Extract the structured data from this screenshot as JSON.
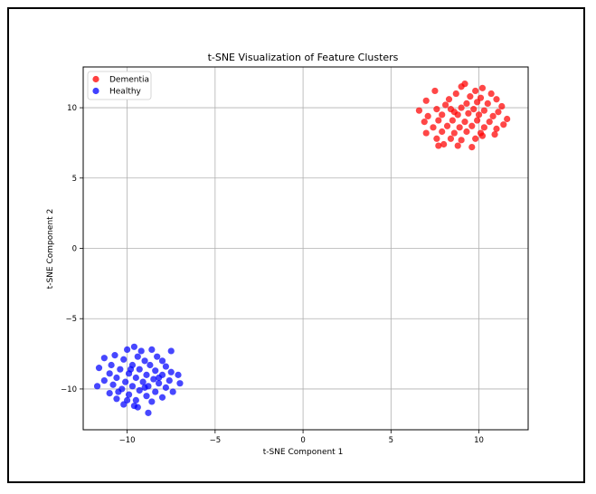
{
  "chart_data": {
    "type": "scatter",
    "title": "t-SNE Visualization of Feature Clusters",
    "xlabel": "t-SNE Component 1",
    "ylabel": "t-SNE Component 2",
    "xlim": [
      -12.5,
      12.8
    ],
    "ylim": [
      -12.9,
      12.9
    ],
    "xticks": [
      -10,
      -5,
      0,
      5,
      10
    ],
    "yticks": [
      -10,
      -5,
      0,
      5,
      10
    ],
    "xtick_labels": [
      "−10",
      "−5",
      "0",
      "5",
      "10"
    ],
    "ytick_labels": [
      "−10",
      "−5",
      "0",
      "5",
      "10"
    ],
    "grid": true,
    "legend_position": "top-left",
    "series": [
      {
        "name": "Dementia",
        "color": "#ff0000",
        "points": [
          [
            9.2,
            11.7
          ],
          [
            9.0,
            11.5
          ],
          [
            10.2,
            11.4
          ],
          [
            8.7,
            11.0
          ],
          [
            9.8,
            11.2
          ],
          [
            10.7,
            11.0
          ],
          [
            7.5,
            11.2
          ],
          [
            8.3,
            10.6
          ],
          [
            9.5,
            10.8
          ],
          [
            10.1,
            10.7
          ],
          [
            11.0,
            10.6
          ],
          [
            7.0,
            10.5
          ],
          [
            8.1,
            10.2
          ],
          [
            9.3,
            10.3
          ],
          [
            10.5,
            10.3
          ],
          [
            11.3,
            10.1
          ],
          [
            6.6,
            9.8
          ],
          [
            7.6,
            9.9
          ],
          [
            8.4,
            9.9
          ],
          [
            9.0,
            10.0
          ],
          [
            9.7,
            9.9
          ],
          [
            10.3,
            9.8
          ],
          [
            11.1,
            9.7
          ],
          [
            7.1,
            9.4
          ],
          [
            7.9,
            9.5
          ],
          [
            8.8,
            9.5
          ],
          [
            9.4,
            9.6
          ],
          [
            10.0,
            9.5
          ],
          [
            10.8,
            9.4
          ],
          [
            11.6,
            9.2
          ],
          [
            6.9,
            9.0
          ],
          [
            7.7,
            9.1
          ],
          [
            8.5,
            9.1
          ],
          [
            9.2,
            9.0
          ],
          [
            9.9,
            9.1
          ],
          [
            10.6,
            9.0
          ],
          [
            11.4,
            8.8
          ],
          [
            7.4,
            8.6
          ],
          [
            8.2,
            8.7
          ],
          [
            8.9,
            8.6
          ],
          [
            9.6,
            8.7
          ],
          [
            10.3,
            8.6
          ],
          [
            11.0,
            8.5
          ],
          [
            7.0,
            8.2
          ],
          [
            7.9,
            8.3
          ],
          [
            8.6,
            8.2
          ],
          [
            9.3,
            8.3
          ],
          [
            10.1,
            8.2
          ],
          [
            10.9,
            8.1
          ],
          [
            7.6,
            7.8
          ],
          [
            8.4,
            7.8
          ],
          [
            9.0,
            7.7
          ],
          [
            9.8,
            7.8
          ],
          [
            8.0,
            7.4
          ],
          [
            8.8,
            7.3
          ],
          [
            9.6,
            7.2
          ],
          [
            7.7,
            7.3
          ],
          [
            10.2,
            8.0
          ],
          [
            8.6,
            9.7
          ],
          [
            9.9,
            10.4
          ]
        ]
      },
      {
        "name": "Healthy",
        "color": "#0000ff",
        "points": [
          [
            -9.6,
            -7.0
          ],
          [
            -9.2,
            -7.3
          ],
          [
            -10.0,
            -7.2
          ],
          [
            -8.6,
            -7.2
          ],
          [
            -7.5,
            -7.3
          ],
          [
            -10.7,
            -7.6
          ],
          [
            -9.4,
            -7.7
          ],
          [
            -8.3,
            -7.7
          ],
          [
            -11.3,
            -7.8
          ],
          [
            -10.2,
            -7.9
          ],
          [
            -9.0,
            -8.0
          ],
          [
            -8.0,
            -8.0
          ],
          [
            -10.9,
            -8.3
          ],
          [
            -9.7,
            -8.3
          ],
          [
            -8.7,
            -8.3
          ],
          [
            -7.8,
            -8.4
          ],
          [
            -11.6,
            -8.5
          ],
          [
            -10.4,
            -8.6
          ],
          [
            -9.3,
            -8.6
          ],
          [
            -8.4,
            -8.7
          ],
          [
            -7.5,
            -8.8
          ],
          [
            -11.0,
            -8.9
          ],
          [
            -9.9,
            -8.9
          ],
          [
            -8.9,
            -9.0
          ],
          [
            -8.0,
            -9.0
          ],
          [
            -7.1,
            -9.0
          ],
          [
            -10.6,
            -9.2
          ],
          [
            -9.5,
            -9.2
          ],
          [
            -8.5,
            -9.3
          ],
          [
            -7.6,
            -9.4
          ],
          [
            -11.3,
            -9.4
          ],
          [
            -10.1,
            -9.5
          ],
          [
            -9.1,
            -9.5
          ],
          [
            -8.2,
            -9.6
          ],
          [
            -7.0,
            -9.6
          ],
          [
            -10.8,
            -9.7
          ],
          [
            -9.7,
            -9.8
          ],
          [
            -8.8,
            -9.8
          ],
          [
            -7.8,
            -9.9
          ],
          [
            -11.7,
            -9.8
          ],
          [
            -10.3,
            -10.0
          ],
          [
            -9.3,
            -10.1
          ],
          [
            -8.4,
            -10.2
          ],
          [
            -7.4,
            -10.2
          ],
          [
            -11.0,
            -10.3
          ],
          [
            -9.9,
            -10.4
          ],
          [
            -8.9,
            -10.5
          ],
          [
            -8.0,
            -10.6
          ],
          [
            -10.6,
            -10.7
          ],
          [
            -9.5,
            -10.8
          ],
          [
            -8.6,
            -10.9
          ],
          [
            -10.2,
            -11.1
          ],
          [
            -9.4,
            -11.3
          ],
          [
            -8.8,
            -11.7
          ],
          [
            -9.6,
            -11.2
          ],
          [
            -10.5,
            -10.2
          ],
          [
            -8.2,
            -9.2
          ],
          [
            -9.8,
            -8.6
          ],
          [
            -9.0,
            -9.9
          ],
          [
            -10.0,
            -10.8
          ]
        ]
      }
    ]
  }
}
